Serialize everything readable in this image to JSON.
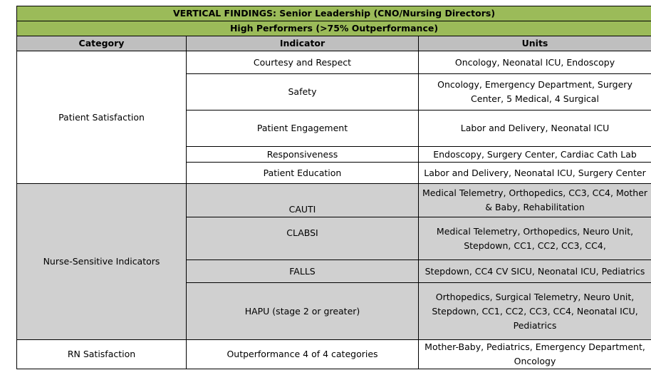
{
  "title": "VERTICAL FINDINGS:  Senior Leadership (CNO/Nursing Directors)",
  "subtitle": "High Performers (>75% Outperformance)",
  "columns": [
    "Category",
    "Indicator",
    "Units"
  ],
  "groups": [
    {
      "category": "Patient Satisfaction",
      "rows": [
        {
          "indicator": "Courtesy and Respect",
          "units": "Oncology, Neonatal ICU, Endoscopy"
        },
        {
          "indicator": "Safety",
          "units": "Oncology, Emergency Department, Surgery Center, 5 Medical, 4 Surgical"
        },
        {
          "indicator": "Patient Engagement",
          "units": "Labor and Delivery, Neonatal ICU"
        },
        {
          "indicator": "Responsiveness",
          "units": "Endoscopy, Surgery Center, Cardiac Cath Lab"
        },
        {
          "indicator": "Patient Education",
          "units": "Labor and Delivery, Neonatal ICU, Surgery Center"
        }
      ]
    },
    {
      "category": "Nurse-Sensitive Indicators",
      "rows": [
        {
          "indicator": "CAUTI",
          "units": "Medical Telemetry, Orthopedics, CC3, CC4, Mother & Baby, Rehabilitation"
        },
        {
          "indicator": "CLABSI",
          "units": "Medical Telemetry, Orthopedics, Neuro Unit, Stepdown, CC1, CC2, CC3, CC4,"
        },
        {
          "indicator": "FALLS",
          "units": "Stepdown, CC4 CV SICU, Neonatal ICU, Pediatrics"
        },
        {
          "indicator": "HAPU (stage 2 or greater)",
          "units": "Orthopedics, Surgical Telemetry, Neuro Unit, Stepdown, CC1, CC2, CC3, CC4, Neonatal ICU, Pediatrics"
        }
      ]
    },
    {
      "category": "RN Satisfaction",
      "rows": [
        {
          "indicator": "Outperformance 4 of 4 categories",
          "units": "Mother-Baby, Pediatrics, Emergency Department, Oncology"
        }
      ]
    }
  ]
}
